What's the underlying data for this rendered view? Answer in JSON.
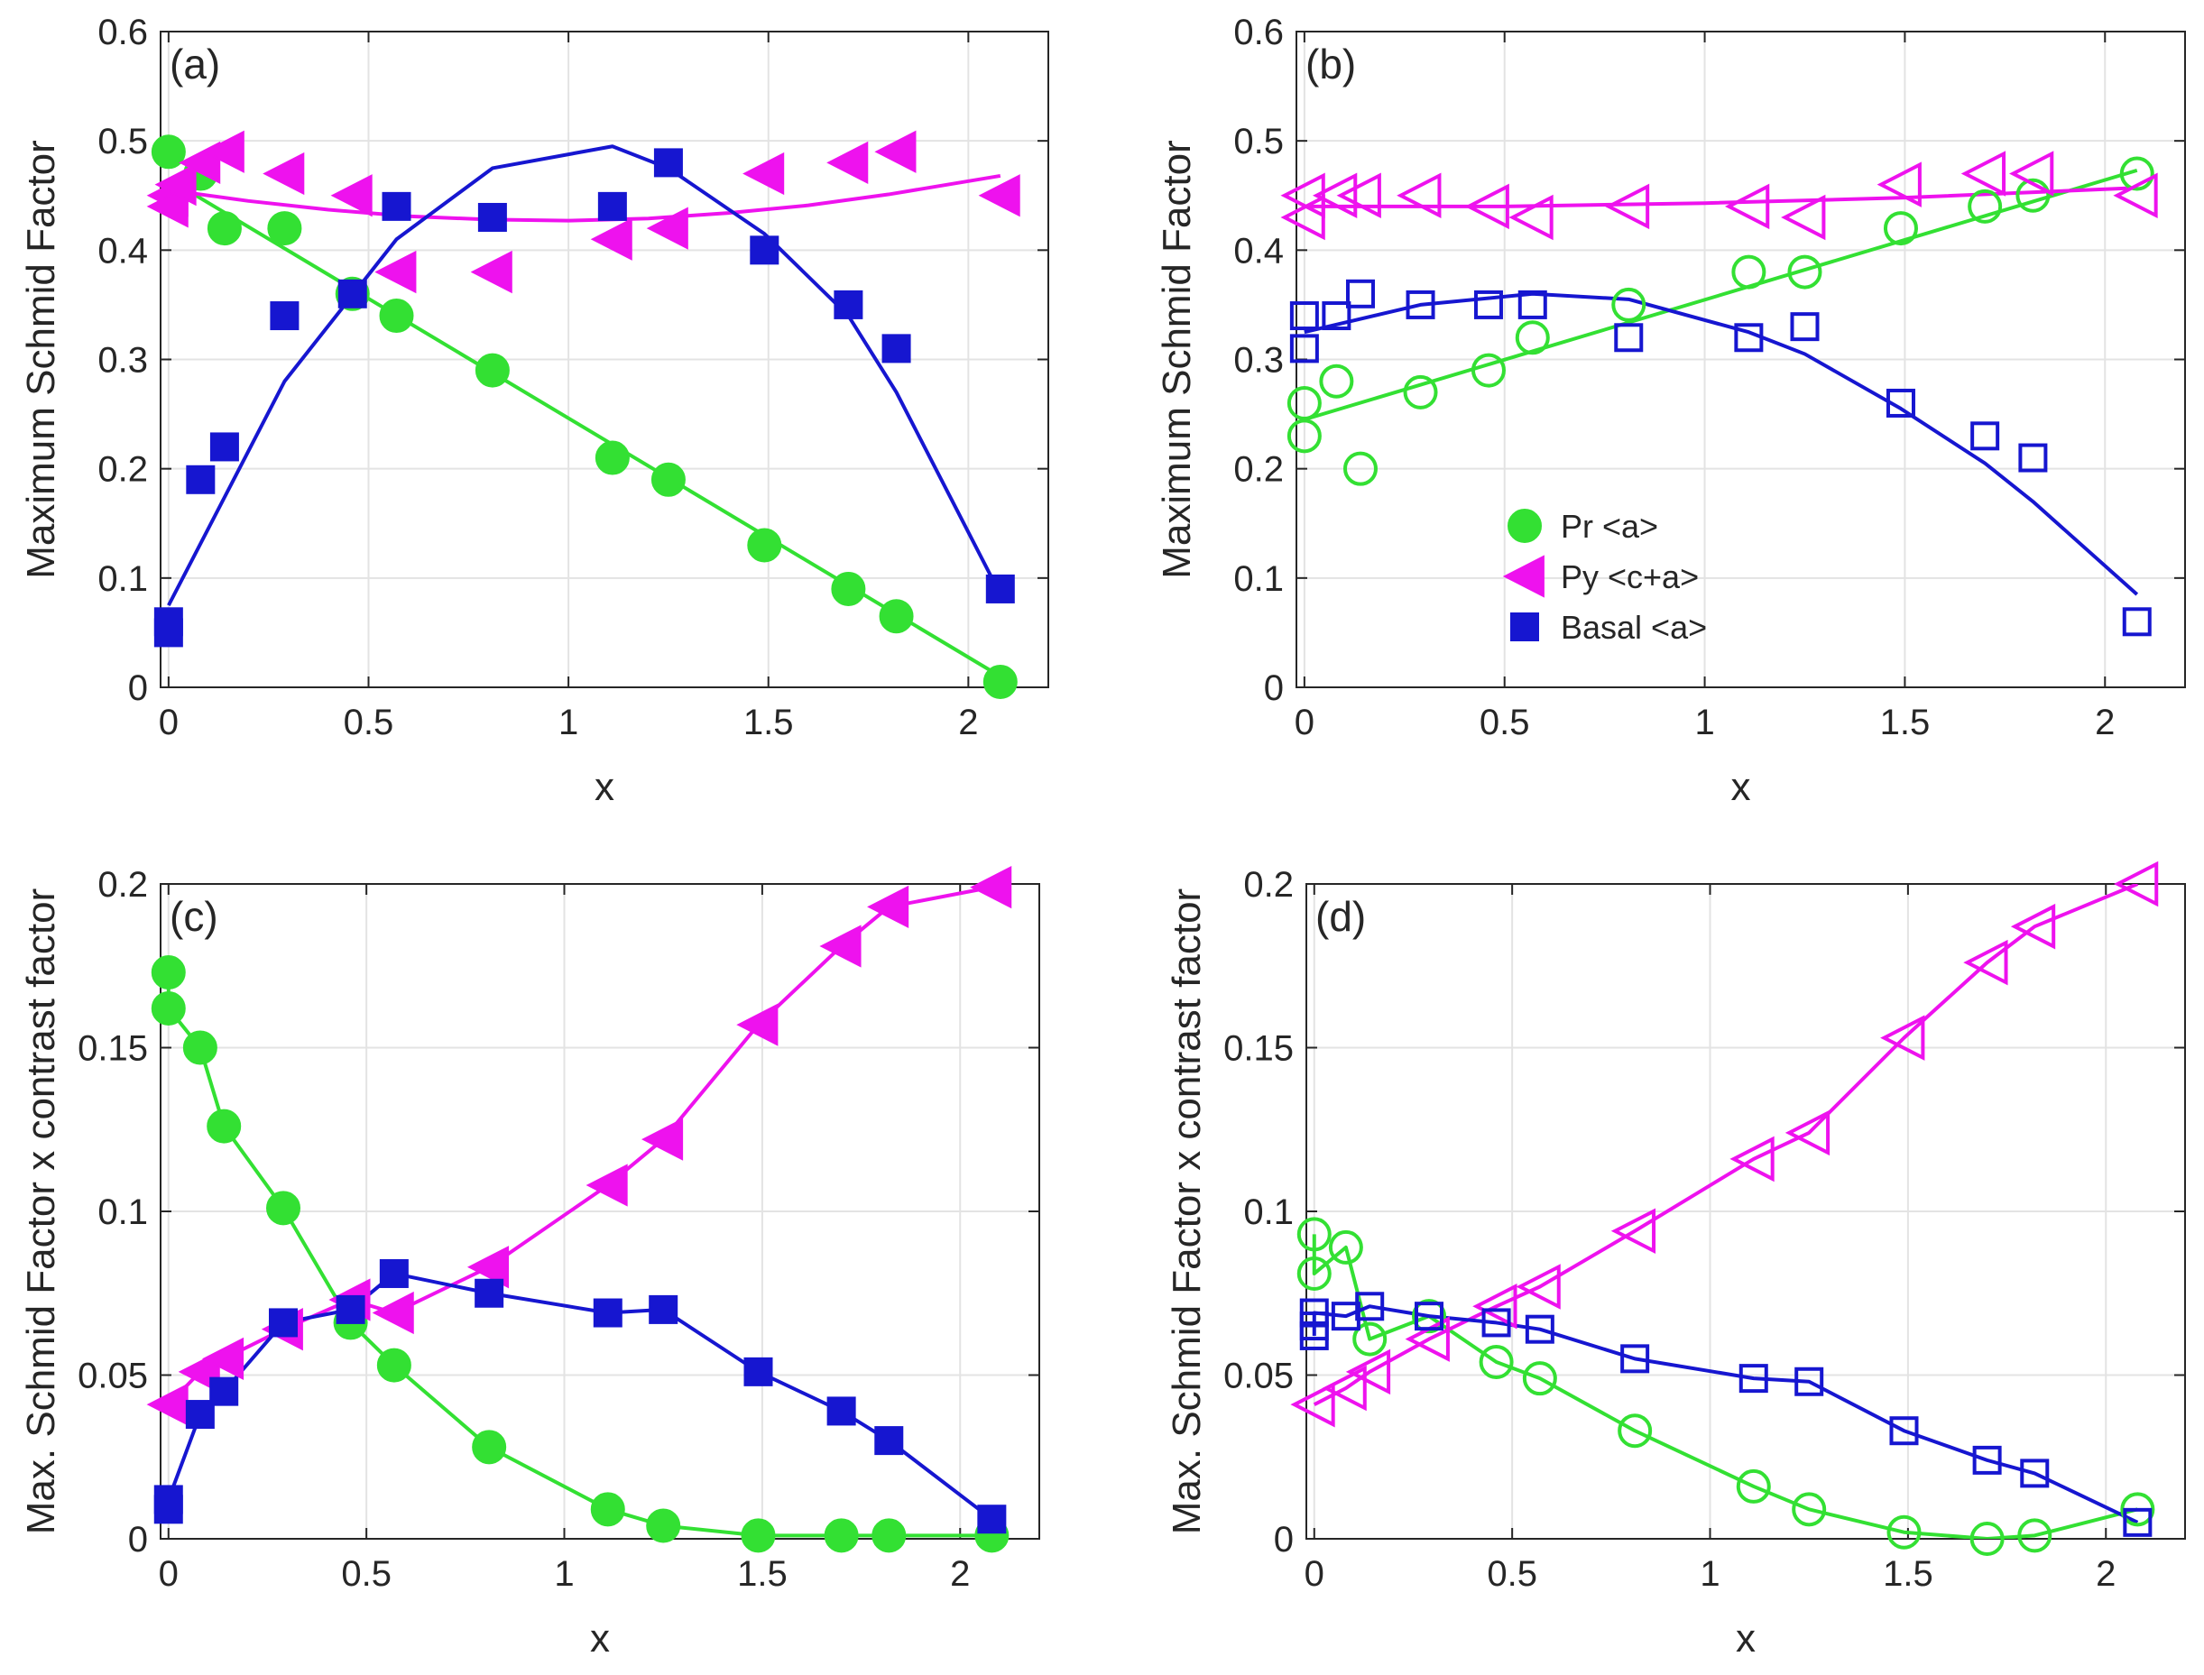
{
  "colors": {
    "green": "#33E033",
    "magenta": "#EE12EE",
    "blue": "#1616D0",
    "grid": "#E3E3E3",
    "axis": "#262626"
  },
  "legend": {
    "items": [
      {
        "series": "pr",
        "label": "Pr <a>",
        "marker": "circle",
        "color": "#33E033"
      },
      {
        "series": "py",
        "label": "Py <c+a>",
        "marker": "triangle",
        "color": "#EE12EE"
      },
      {
        "series": "basal",
        "label": "Basal <a>",
        "marker": "square",
        "color": "#1616D0"
      }
    ]
  },
  "chart_data": [
    {
      "id": "a",
      "type": "scatter",
      "panel_label": "(a)",
      "filled": true,
      "xlabel": "x",
      "ylabel": "Maximum Schmid Factor",
      "xlim": [
        -0.02,
        2.2
      ],
      "ylim": [
        0,
        0.6
      ],
      "xticks": [
        0,
        0.5,
        1,
        1.5,
        2
      ],
      "xtick_labels": [
        "0",
        "0.5",
        "1",
        "1.5",
        "2"
      ],
      "yticks": [
        0,
        0.1,
        0.2,
        0.3,
        0.4,
        0.5,
        0.6
      ],
      "ytick_labels": [
        "0",
        "0.1",
        "0.2",
        "0.3",
        "0.4",
        "0.5",
        "0.6"
      ],
      "series": [
        {
          "key": "pr",
          "name": "Pr <a>",
          "marker": "circle",
          "color": "#33E033",
          "x": [
            0,
            0.08,
            0.14,
            0.29,
            0.46,
            0.57,
            0.81,
            1.11,
            1.25,
            1.49,
            1.7,
            1.82,
            2.08
          ],
          "y": [
            0.49,
            0.47,
            0.42,
            0.42,
            0.36,
            0.34,
            0.29,
            0.21,
            0.19,
            0.13,
            0.09,
            0.065,
            0.005
          ],
          "fit_x": [
            0,
            2.08
          ],
          "fit_y": [
            0.465,
            0.01
          ]
        },
        {
          "key": "py",
          "name": "Py <c+a>",
          "marker": "triangle",
          "color": "#EE12EE",
          "x": [
            0,
            0,
            0.02,
            0.08,
            0.14,
            0.29,
            0.46,
            0.57,
            0.81,
            1.11,
            1.25,
            1.49,
            1.7,
            1.82,
            2.08
          ],
          "y": [
            0.45,
            0.44,
            0.46,
            0.48,
            0.49,
            0.47,
            0.45,
            0.38,
            0.38,
            0.41,
            0.42,
            0.47,
            0.48,
            0.49,
            0.45
          ],
          "fit_x": [
            0,
            0.2,
            0.4,
            0.6,
            0.8,
            1.0,
            1.2,
            1.4,
            1.6,
            1.8,
            2.08
          ],
          "fit_y": [
            0.455,
            0.445,
            0.437,
            0.431,
            0.428,
            0.427,
            0.429,
            0.434,
            0.441,
            0.451,
            0.468
          ]
        },
        {
          "key": "basal",
          "name": "Basal <a>",
          "marker": "square",
          "color": "#1616D0",
          "x": [
            0,
            0,
            0.08,
            0.14,
            0.29,
            0.46,
            0.57,
            0.81,
            1.11,
            1.25,
            1.49,
            1.7,
            1.82,
            2.08
          ],
          "y": [
            0.05,
            0.06,
            0.19,
            0.22,
            0.34,
            0.36,
            0.44,
            0.43,
            0.44,
            0.48,
            0.4,
            0.35,
            0.31,
            0.09
          ],
          "fit_x": [
            0,
            0.29,
            0.57,
            0.81,
            1.11,
            1.25,
            1.49,
            1.7,
            1.82,
            2.08
          ],
          "fit_y": [
            0.075,
            0.28,
            0.41,
            0.475,
            0.495,
            0.475,
            0.415,
            0.34,
            0.27,
            0.085
          ]
        }
      ]
    },
    {
      "id": "b",
      "type": "scatter",
      "panel_label": "(b)",
      "filled": false,
      "xlabel": "x",
      "ylabel": "Maximum Schmid Factor",
      "xlim": [
        -0.02,
        2.2
      ],
      "ylim": [
        0,
        0.6
      ],
      "xticks": [
        0,
        0.5,
        1,
        1.5,
        2
      ],
      "xtick_labels": [
        "0",
        "0.5",
        "1",
        "1.5",
        "2"
      ],
      "yticks": [
        0,
        0.1,
        0.2,
        0.3,
        0.4,
        0.5,
        0.6
      ],
      "ytick_labels": [
        "0",
        "0.1",
        "0.2",
        "0.3",
        "0.4",
        "0.5",
        "0.6"
      ],
      "series": [
        {
          "key": "pr",
          "name": "Pr <a>",
          "marker": "circle",
          "color": "#33E033",
          "x": [
            0,
            0,
            0.08,
            0.14,
            0.29,
            0.46,
            0.57,
            0.81,
            1.11,
            1.25,
            1.49,
            1.7,
            1.82,
            2.08
          ],
          "y": [
            0.26,
            0.23,
            0.28,
            0.2,
            0.27,
            0.29,
            0.32,
            0.35,
            0.38,
            0.38,
            0.42,
            0.44,
            0.45,
            0.47
          ],
          "fit_x": [
            0,
            2.08
          ],
          "fit_y": [
            0.245,
            0.473
          ]
        },
        {
          "key": "py",
          "name": "Py <c+a>",
          "marker": "triangle",
          "color": "#EE12EE",
          "x": [
            0,
            0,
            0.08,
            0.14,
            0.29,
            0.46,
            0.57,
            0.81,
            1.11,
            1.25,
            1.49,
            1.7,
            1.82,
            2.08
          ],
          "y": [
            0.45,
            0.43,
            0.45,
            0.45,
            0.45,
            0.44,
            0.43,
            0.44,
            0.44,
            0.43,
            0.46,
            0.47,
            0.47,
            0.45
          ],
          "fit_x": [
            0,
            0.5,
            1.0,
            1.5,
            2.08
          ],
          "fit_y": [
            0.44,
            0.44,
            0.443,
            0.448,
            0.457
          ]
        },
        {
          "key": "basal",
          "name": "Basal <a>",
          "marker": "square",
          "color": "#1616D0",
          "x": [
            0,
            0,
            0.08,
            0.14,
            0.29,
            0.46,
            0.57,
            0.81,
            1.11,
            1.25,
            1.49,
            1.7,
            1.82,
            2.08
          ],
          "y": [
            0.31,
            0.34,
            0.34,
            0.36,
            0.35,
            0.35,
            0.35,
            0.32,
            0.32,
            0.33,
            0.26,
            0.23,
            0.21,
            0.06
          ],
          "fit_x": [
            0,
            0.29,
            0.57,
            0.81,
            1.11,
            1.25,
            1.49,
            1.7,
            1.82,
            2.08
          ],
          "fit_y": [
            0.325,
            0.35,
            0.36,
            0.355,
            0.325,
            0.305,
            0.255,
            0.205,
            0.17,
            0.085
          ]
        }
      ]
    },
    {
      "id": "c",
      "type": "line",
      "panel_label": "(c)",
      "filled": true,
      "xlabel": "x",
      "ylabel": "Max. Schmid Factor x contrast factor",
      "xlim": [
        -0.02,
        2.2
      ],
      "ylim": [
        0,
        0.2
      ],
      "xticks": [
        0,
        0.5,
        1,
        1.5,
        2
      ],
      "xtick_labels": [
        "0",
        "0.5",
        "1",
        "1.5",
        "2"
      ],
      "yticks": [
        0,
        0.05,
        0.1,
        0.15,
        0.2
      ],
      "ytick_labels": [
        "0",
        "0.05",
        "0.1",
        "0.15",
        "0.2"
      ],
      "series": [
        {
          "key": "pr",
          "name": "Pr <a>",
          "marker": "circle",
          "color": "#33E033",
          "x": [
            0,
            0,
            0.08,
            0.14,
            0.29,
            0.46,
            0.57,
            0.81,
            1.11,
            1.25,
            1.49,
            1.7,
            1.82,
            2.08
          ],
          "y": [
            0.173,
            0.162,
            0.15,
            0.126,
            0.101,
            0.066,
            0.053,
            0.028,
            0.009,
            0.004,
            0.001,
            0.001,
            0.001,
            0.001
          ]
        },
        {
          "key": "py",
          "name": "Py <c+a>",
          "marker": "triangle",
          "color": "#EE12EE",
          "x": [
            0,
            0.08,
            0.14,
            0.29,
            0.46,
            0.57,
            0.81,
            1.11,
            1.25,
            1.49,
            1.7,
            1.82,
            2.08
          ],
          "y": [
            0.041,
            0.051,
            0.055,
            0.064,
            0.073,
            0.069,
            0.083,
            0.108,
            0.122,
            0.157,
            0.181,
            0.193,
            0.199
          ]
        },
        {
          "key": "basal",
          "name": "Basal <a>",
          "marker": "square",
          "color": "#1616D0",
          "x": [
            0,
            0,
            0.08,
            0.14,
            0.29,
            0.46,
            0.57,
            0.81,
            1.11,
            1.25,
            1.49,
            1.7,
            1.82,
            2.08
          ],
          "y": [
            0.009,
            0.012,
            0.038,
            0.045,
            0.066,
            0.07,
            0.081,
            0.075,
            0.069,
            0.07,
            0.051,
            0.039,
            0.03,
            0.006
          ]
        }
      ]
    },
    {
      "id": "d",
      "type": "line",
      "panel_label": "(d)",
      "filled": false,
      "xlabel": "x",
      "ylabel": "Max. Schmid Factor x contrast factor",
      "xlim": [
        -0.02,
        2.2
      ],
      "ylim": [
        0,
        0.2
      ],
      "xticks": [
        0,
        0.5,
        1,
        1.5,
        2
      ],
      "xtick_labels": [
        "0",
        "0.5",
        "1",
        "1.5",
        "2"
      ],
      "yticks": [
        0,
        0.05,
        0.1,
        0.15,
        0.2
      ],
      "ytick_labels": [
        "0",
        "0.05",
        "0.1",
        "0.15",
        "0.2"
      ],
      "series": [
        {
          "key": "pr",
          "name": "Pr <a>",
          "marker": "circle",
          "color": "#33E033",
          "x": [
            0,
            0,
            0.08,
            0.14,
            0.29,
            0.46,
            0.57,
            0.81,
            1.11,
            1.25,
            1.49,
            1.7,
            1.82,
            2.08
          ],
          "y": [
            0.093,
            0.081,
            0.089,
            0.061,
            0.068,
            0.054,
            0.049,
            0.033,
            0.016,
            0.009,
            0.002,
            0.0,
            0.001,
            0.009
          ]
        },
        {
          "key": "py",
          "name": "Py <c+a>",
          "marker": "triangle",
          "color": "#EE12EE",
          "x": [
            0,
            0.08,
            0.14,
            0.29,
            0.46,
            0.57,
            0.81,
            1.11,
            1.25,
            1.49,
            1.7,
            1.82,
            2.08
          ],
          "y": [
            0.041,
            0.046,
            0.051,
            0.061,
            0.071,
            0.077,
            0.094,
            0.116,
            0.124,
            0.153,
            0.176,
            0.187,
            0.2
          ]
        },
        {
          "key": "basal",
          "name": "Basal <a>",
          "marker": "square",
          "color": "#1616D0",
          "x": [
            0,
            0,
            0,
            0.08,
            0.14,
            0.29,
            0.46,
            0.57,
            0.81,
            1.11,
            1.25,
            1.49,
            1.7,
            1.82,
            2.08
          ],
          "y": [
            0.062,
            0.065,
            0.069,
            0.068,
            0.071,
            0.068,
            0.066,
            0.064,
            0.055,
            0.049,
            0.048,
            0.033,
            0.024,
            0.02,
            0.005
          ]
        }
      ]
    }
  ]
}
